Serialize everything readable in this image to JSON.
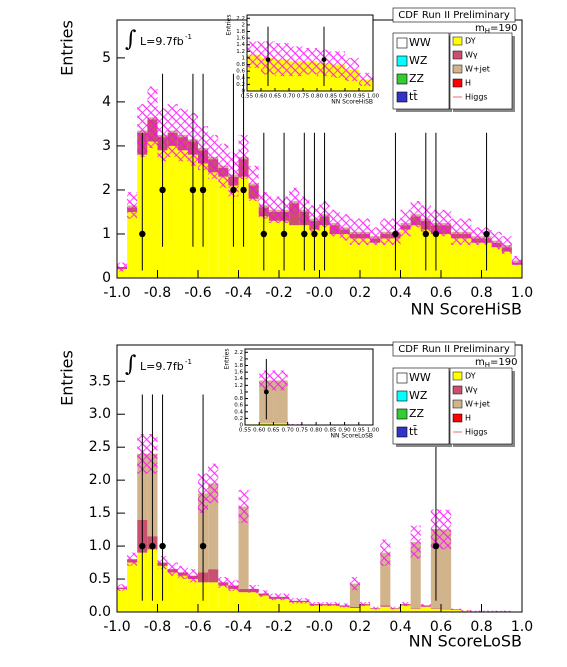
{
  "chart_data": [
    {
      "type": "stacked_histogram",
      "title": "CDF Run II Preliminary",
      "xlabel": "NN ScoreHiSB",
      "ylabel": "Entries",
      "integral": "∫",
      "lumi": "L=9.7fb",
      "lumi_exp": "-1",
      "mass": [
        "m",
        "H",
        "=190"
      ],
      "bins": [
        -1.0,
        -0.95,
        -0.9,
        -0.85,
        -0.8,
        -0.75,
        -0.7,
        -0.65,
        -0.6,
        -0.55,
        -0.5,
        -0.45,
        -0.4,
        -0.35,
        -0.3,
        -0.25,
        -0.2,
        -0.15,
        -0.1,
        -0.05,
        0,
        0.05,
        0.1,
        0.15,
        0.2,
        0.25,
        0.3,
        0.35,
        0.4,
        0.45,
        0.5,
        0.55,
        0.6,
        0.65,
        0.7,
        0.75,
        0.8,
        0.85,
        0.9,
        0.95,
        1.0
      ],
      "xlim": [
        -1,
        1
      ],
      "ylim": [
        0,
        5.86
      ],
      "xticks": [
        {
          "value": -1,
          "label": "-1.0"
        },
        -0.8,
        -0.6,
        -0.4,
        -0.2,
        {
          "value": 0,
          "label": "-0.0"
        },
        0.2,
        0.4,
        0.6,
        0.8,
        {
          "value": 1,
          "label": "1.0"
        }
      ],
      "yticks": [
        0,
        1,
        2,
        3,
        4,
        5
      ],
      "series": [
        {
          "name": "DY",
          "color": "#ffff00",
          "values": [
            0.2,
            1.5,
            2.8,
            3.1,
            2.9,
            3.0,
            2.9,
            2.8,
            2.6,
            2.4,
            2.3,
            2.1,
            2.3,
            1.8,
            1.4,
            1.3,
            1.3,
            1.2,
            1.2,
            1.1,
            1.2,
            1.0,
            1.0,
            0.9,
            0.9,
            0.8,
            0.9,
            0.9,
            1.1,
            1.2,
            1.1,
            1.0,
            1.0,
            0.9,
            0.9,
            0.8,
            0.8,
            0.7,
            0.6,
            0.3
          ]
        },
        {
          "name": "Wγ",
          "color": "#c9506e",
          "values": [
            0.05,
            0.1,
            0.5,
            0.5,
            0.3,
            0.3,
            0.3,
            0.3,
            0.3,
            0.3,
            0.2,
            0.2,
            0.4,
            0.3,
            0.2,
            0.2,
            0.2,
            0.5,
            0.3,
            0.2,
            0.2,
            0.2,
            0.1,
            0.1,
            0.1,
            0.1,
            0.1,
            0.1,
            0.1,
            0.2,
            0.2,
            0.2,
            0.2,
            0.1,
            0.1,
            0.1,
            0.1,
            0.1,
            0.1,
            0.05
          ]
        },
        {
          "name": "W+jet",
          "color": "#d2b48c",
          "values": [
            0,
            0.05,
            0.05,
            0.05,
            0.05,
            0.05,
            0.05,
            0.05,
            0.05,
            0.05,
            0.05,
            0.05,
            0.05,
            0.05,
            0.05,
            0.05,
            0.05,
            0.05,
            0.05,
            0.05,
            0.05,
            0.05,
            0.05,
            0.05,
            0.05,
            0.05,
            0.05,
            0.05,
            0.05,
            0.05,
            0.05,
            0.05,
            0.05,
            0.05,
            0.05,
            0.05,
            0.05,
            0.05,
            0.05,
            0.05
          ]
        }
      ],
      "uncertainty": [
        0.1,
        0.3,
        0.6,
        0.7,
        0.6,
        0.6,
        0.6,
        0.6,
        0.5,
        0.5,
        0.5,
        0.5,
        0.5,
        0.4,
        0.3,
        0.3,
        0.3,
        0.3,
        0.3,
        0.3,
        0.3,
        0.3,
        0.3,
        0.3,
        0.3,
        0.2,
        0.3,
        0.3,
        0.3,
        0.3,
        0.3,
        0.3,
        0.3,
        0.3,
        0.3,
        0.2,
        0.2,
        0.2,
        0.2,
        0.1
      ],
      "uncertainty_color": "#ff00ff",
      "data_points": {
        "x": [
          -0.875,
          -0.775,
          -0.625,
          -0.575,
          -0.425,
          -0.375,
          -0.275,
          -0.175,
          -0.075,
          -0.025,
          0.025,
          0.375,
          0.525,
          0.575,
          0.825
        ],
        "y": [
          1,
          2,
          2,
          2,
          2,
          2,
          1,
          1,
          1,
          1,
          1,
          1,
          1,
          1,
          1
        ],
        "err_low": [
          0.83,
          1.29,
          1.29,
          1.29,
          1.29,
          1.29,
          0.83,
          0.83,
          0.83,
          0.83,
          0.83,
          0.83,
          0.83,
          0.83,
          0.83
        ],
        "err_high": [
          2.3,
          2.64,
          2.64,
          2.64,
          2.64,
          2.64,
          2.3,
          2.3,
          2.3,
          2.3,
          2.3,
          2.3,
          2.3,
          2.3,
          2.3
        ]
      },
      "legend_left": [
        {
          "name": "WW",
          "color": "#ffffff"
        },
        {
          "name": "WZ",
          "color": "#00ffff"
        },
        {
          "name": "ZZ",
          "color": "#33cc33"
        },
        {
          "name": "tt̄",
          "color": "#3333cc"
        }
      ],
      "legend_extra": [
        {
          "name": "H",
          "color": "#ff0000"
        },
        {
          "name": "Higgs",
          "color": "#ff6666"
        }
      ],
      "inset": {
        "xlabel": "NN ScoreHiSB",
        "ylabel": "Entries",
        "bins": [
          0.55,
          0.6,
          0.65,
          0.7,
          0.75,
          0.8,
          0.85,
          0.9,
          0.95,
          1.0
        ],
        "xlim": [
          0.55,
          1
        ],
        "ylim": [
          0,
          2.3
        ],
        "xticks": [
          0.55,
          {
            "value": 0.6,
            "label": "0.60"
          },
          0.65,
          {
            "value": 0.7,
            "label": "0.70"
          },
          0.75,
          {
            "value": 0.8,
            "label": "0.80"
          },
          0.85,
          {
            "value": 0.9,
            "label": "0.90"
          },
          0.95,
          {
            "value": 1,
            "label": "1.00"
          }
        ],
        "yticks": [
          0,
          0.2,
          0.4,
          0.6,
          0.8,
          1,
          1.2,
          1.4,
          1.6,
          1.8,
          2,
          2.2
        ],
        "series": [
          {
            "color": "#ffff00",
            "values": [
              1.1,
              1.0,
              0.95,
              0.9,
              0.9,
              0.85,
              0.8,
              0.65,
              0.35
            ]
          }
        ],
        "uncertainty": [
          0.4,
          0.5,
          0.5,
          0.45,
          0.4,
          0.4,
          0.4,
          0.35,
          0.2
        ],
        "data_points": {
          "x": [
            0.625,
            0.825
          ],
          "y": [
            0.95,
            0.95
          ],
          "err_low": [
            0.8,
            0.8
          ],
          "err_high": [
            1.0,
            1.0
          ]
        }
      }
    },
    {
      "type": "stacked_histogram",
      "title": "CDF Run II Preliminary",
      "xlabel": "NN ScoreLoSB",
      "ylabel": "Entries",
      "integral": "∫",
      "lumi": "L=9.7fb",
      "lumi_exp": "-1",
      "mass": [
        "m",
        "H",
        "=190"
      ],
      "bins": [
        -1.0,
        -0.95,
        -0.9,
        -0.85,
        -0.8,
        -0.75,
        -0.7,
        -0.65,
        -0.6,
        -0.55,
        -0.5,
        -0.45,
        -0.4,
        -0.35,
        -0.3,
        -0.25,
        -0.2,
        -0.15,
        -0.1,
        -0.05,
        0,
        0.05,
        0.1,
        0.15,
        0.2,
        0.25,
        0.3,
        0.35,
        0.4,
        0.45,
        0.5,
        0.55,
        0.6,
        0.65,
        0.7,
        0.75,
        0.8,
        0.85,
        0.9,
        0.95,
        1.0
      ],
      "xlim": [
        -1,
        1
      ],
      "ylim": [
        0,
        4.05
      ],
      "xticks": [
        {
          "value": -1,
          "label": "-1.0"
        },
        -0.8,
        -0.6,
        -0.4,
        -0.2,
        {
          "value": 0,
          "label": "-0.0"
        },
        0.2,
        0.4,
        0.6,
        0.8,
        {
          "value": 1,
          "label": "1.0"
        }
      ],
      "yticks": [
        {
          "value": 0,
          "label": "0.0"
        },
        0.5,
        {
          "value": 1,
          "label": "1.0"
        },
        1.5,
        {
          "value": 2,
          "label": "2.0"
        },
        2.5,
        {
          "value": 3,
          "label": "3.0"
        },
        3.5
      ],
      "series": [
        {
          "name": "DY",
          "color": "#ffff00",
          "values": [
            0.35,
            0.75,
            0.9,
            0.95,
            0.7,
            0.6,
            0.55,
            0.5,
            0.45,
            0.45,
            0.4,
            0.35,
            0.3,
            0.3,
            0.25,
            0.2,
            0.2,
            0.15,
            0.15,
            0.1,
            0.1,
            0.1,
            0.08,
            0.06,
            0.1,
            0.05,
            0.08,
            0.05,
            0.1,
            0.05,
            0.08,
            0.05,
            0.04,
            0.03,
            0.02,
            0.01,
            0.01,
            0.01,
            0.01,
            0
          ]
        },
        {
          "name": "Wγ",
          "color": "#c9506e",
          "values": [
            0.02,
            0.05,
            0.5,
            0.2,
            0.05,
            0.05,
            0.05,
            0.05,
            0.15,
            0.2,
            0.05,
            0.05,
            0.05,
            0.05,
            0.03,
            0.03,
            0.03,
            0.02,
            0.02,
            0.02,
            0.02,
            0.02,
            0.02,
            0.02,
            0.02,
            0.01,
            0.02,
            0.01,
            0.02,
            0.01,
            0.02,
            0.01,
            0.01,
            0.01,
            0,
            0,
            0,
            0,
            0,
            0
          ]
        },
        {
          "name": "W+jet",
          "color": "#d2b48c",
          "values": [
            0,
            0,
            1.0,
            1.25,
            0,
            0,
            0,
            0,
            1.2,
            1.3,
            0,
            0,
            1.25,
            0,
            0,
            0,
            0,
            0,
            0,
            0,
            0,
            0,
            0,
            0.35,
            0,
            0,
            0.8,
            0,
            0,
            1.0,
            0,
            1.2,
            1.2,
            0,
            0,
            0,
            0,
            0,
            0,
            0
          ]
        }
      ],
      "uncertainty": [
        0.05,
        0.1,
        0.3,
        0.3,
        0.1,
        0.1,
        0.1,
        0.1,
        0.3,
        0.3,
        0.08,
        0.08,
        0.25,
        0.06,
        0.05,
        0.05,
        0.05,
        0.04,
        0.04,
        0.03,
        0.03,
        0.03,
        0.03,
        0.1,
        0.03,
        0.02,
        0.2,
        0.02,
        0.03,
        0.25,
        0.02,
        0.3,
        0.3,
        0.01,
        0.01,
        0.01,
        0.01,
        0.01,
        0.01,
        0
      ],
      "uncertainty_color": "#ff00ff",
      "data_points": {
        "x": [
          -0.875,
          -0.825,
          -0.775,
          -0.575,
          0.575
        ],
        "y": [
          1,
          1,
          1,
          1,
          1
        ],
        "err_low": [
          0.83,
          0.83,
          0.83,
          0.83,
          0.83
        ],
        "err_high": [
          2.3,
          2.3,
          2.3,
          2.3,
          2.3
        ]
      },
      "legend_left": [
        {
          "name": "WW",
          "color": "#ffffff"
        },
        {
          "name": "WZ",
          "color": "#00ffff"
        },
        {
          "name": "ZZ",
          "color": "#33cc33"
        },
        {
          "name": "tt̄",
          "color": "#3333cc"
        }
      ],
      "legend_extra": [
        {
          "name": "H",
          "color": "#ff0000"
        },
        {
          "name": "Higgs",
          "color": "#ff6666"
        }
      ],
      "inset": {
        "xlabel": "NN ScoreLoSB",
        "ylabel": "Entries",
        "bins": [
          0.55,
          0.6,
          0.65,
          0.7,
          0.75,
          0.8,
          0.85,
          0.9,
          0.95,
          1.0
        ],
        "xlim": [
          0.55,
          1
        ],
        "ylim": [
          0,
          2.3
        ],
        "xticks": [
          0.55,
          {
            "value": 0.6,
            "label": "0.60"
          },
          0.65,
          {
            "value": 0.7,
            "label": "0.70"
          },
          0.75,
          {
            "value": 0.8,
            "label": "0.80"
          },
          0.85,
          {
            "value": 0.9,
            "label": "0.90"
          },
          0.95,
          {
            "value": 1,
            "label": "1.00"
          }
        ],
        "yticks": [
          0,
          0.2,
          0.4,
          0.6,
          0.8,
          1,
          1.2,
          1.4,
          1.6,
          1.8,
          2,
          2.2
        ],
        "series": [
          {
            "color": "#ffff00",
            "values": [
              0.02,
              0.05,
              0.05,
              0.01,
              0,
              0,
              0,
              0,
              0
            ]
          },
          {
            "color": "#d2b48c",
            "values": [
              0,
              1.3,
              1.3,
              0,
              0,
              0,
              0,
              0,
              0
            ]
          }
        ],
        "uncertainty": [
          0,
          0.3,
          0.3,
          0.02,
          0,
          0,
          0,
          0,
          0
        ],
        "data_points": {
          "x": [
            0.625
          ],
          "y": [
            1.0
          ],
          "err_low": [
            0.83
          ],
          "err_high": [
            1.0
          ]
        }
      }
    }
  ]
}
